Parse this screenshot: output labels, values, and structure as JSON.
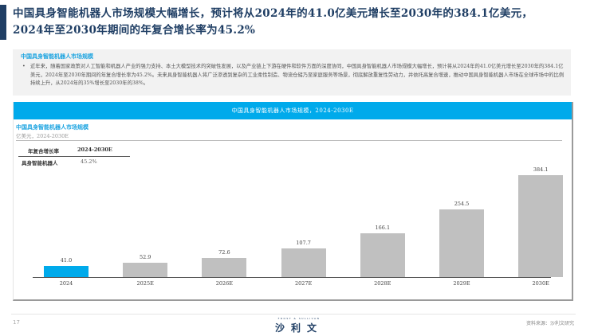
{
  "page": {
    "title_line1": "中国具身智能机器人市场规模大幅增长，预计将从2024年的41.0亿美元增长至2030年的384.1亿美元，",
    "title_line2": "2024年至2030年期间的年复合增长率为45.2%",
    "page_number": "17",
    "source": "资料来源：沙利文研究",
    "logo_tagline": "FROST & SULLIVAN",
    "logo_text": "沙利文"
  },
  "summary": {
    "heading": "中国具身智能机器人市场规模",
    "bullet": "•",
    "text": "近年来，随着国家政策对人工智能和机器人产业的强力支持、本土大模型技术的突破性发展，以及产业链上下游在硬件和软件方面的深度协同，中国具身智能机器人市场规模大幅增长，预计将从2024年的41.0亿美元增长至2030年的384.1亿美元，2024年至2030年期间的年复合增长率为45.2%。未来具身智能机器人将广泛渗透到复杂的工业柔性制造、物流仓储乃至家庭服务等场景，彻底解放重复性劳动力，并依托高复合增速，推动中国具身智能机器人市场在全球市场中的比例持续上升，从2024年的35%增长至2030年的38%。"
  },
  "chart_panel": {
    "header": "中国具身智能机器人市场规模，2024-2030E",
    "subtitle": "中国具身智能机器人市场规模",
    "unit": "亿美元，2024-2030E",
    "cagr_table": {
      "headers": [
        "年复合增长率",
        "2024-2030E"
      ],
      "rows": [
        [
          "具身智能机器人",
          "45.2%"
        ]
      ]
    }
  },
  "chart_data": {
    "type": "bar",
    "title": "中国具身智能机器人市场规模，2024-2030E",
    "subtitle": "中国具身智能机器人市场规模",
    "ylabel": "亿美元",
    "xlabel": "",
    "categories": [
      "2024",
      "2025E",
      "2026E",
      "2027E",
      "2028E",
      "2029E",
      "2030E"
    ],
    "values": [
      41.0,
      52.9,
      72.6,
      107.7,
      166.1,
      254.5,
      384.1
    ],
    "value_labels": [
      "41.0",
      "52.9",
      "72.6",
      "107.7",
      "166.1",
      "254.5",
      "384.1"
    ],
    "highlight_index": 0,
    "colors": {
      "highlight": "#00aaeb",
      "default": "#c0c0c0"
    },
    "ylim": [
      0,
      400
    ],
    "grid": false,
    "legend": "none",
    "cagr": {
      "period": "2024-2030E",
      "series": "具身智能机器人",
      "value": "45.2%"
    }
  }
}
